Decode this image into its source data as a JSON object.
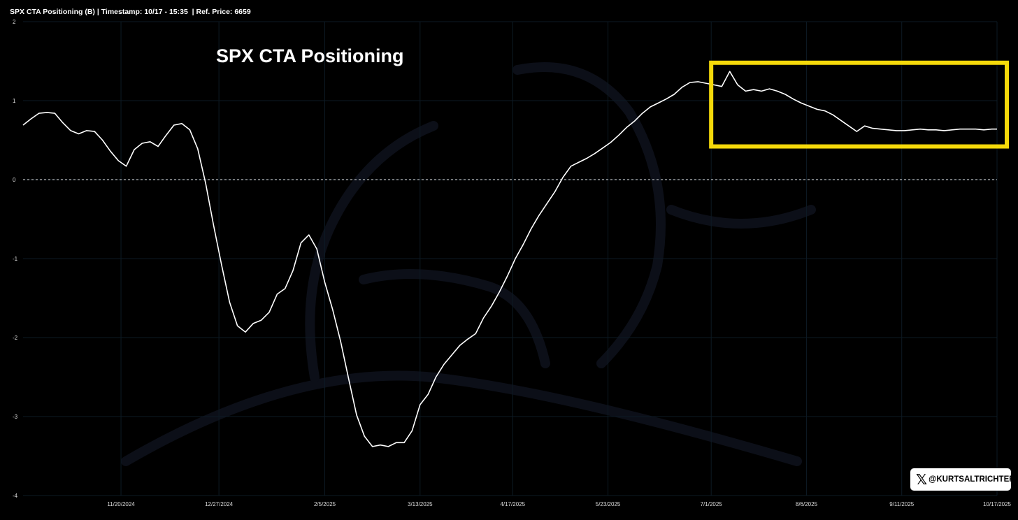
{
  "header": {
    "text": "SPX CTA Positioning (B) | Timestamp: 10/17 - 15:35  | Ref. Price: 6659"
  },
  "badge": {
    "x_glyph": "𝕏",
    "handle": "@KURTSALTRICHTER"
  },
  "colors": {
    "background": "#000000",
    "line": "#ffffff",
    "highlight_box": "#f5d90a",
    "zero_line": "#bbbbbb",
    "grid": "#0d1a24"
  },
  "chart_data": {
    "type": "line",
    "title": "SPX CTA Positioning",
    "xlabel": "",
    "ylabel": "",
    "ylim": [
      -4,
      2
    ],
    "y_ticks": [
      2,
      1,
      0,
      -1,
      -2,
      -3,
      -4
    ],
    "x_tick_labels": [
      "11/20/2024",
      "12/27/2024",
      "2/5/2025",
      "3/13/2025",
      "4/17/2025",
      "5/23/2025",
      "7/1/2025",
      "8/6/2025",
      "9/11/2025",
      "10/17/2025"
    ],
    "x_range": [
      "2024-10-14",
      "2025-10-17"
    ],
    "zero_line": {
      "value": 0,
      "style": "dotted"
    },
    "grid": true,
    "highlight": {
      "x_range": [
        "2025-07-01",
        "2025-10-17"
      ],
      "y_range": [
        0.42,
        1.48
      ],
      "color": "#f5d90a"
    },
    "series": [
      {
        "x": [
          "2024-10-14",
          "2024-10-17",
          "2024-10-20",
          "2024-10-23",
          "2024-10-26",
          "2024-10-29",
          "2024-11-01",
          "2024-11-04",
          "2024-11-07",
          "2024-11-10",
          "2024-11-13",
          "2024-11-16",
          "2024-11-19",
          "2024-11-22",
          "2024-11-25",
          "2024-11-28",
          "2024-12-01",
          "2024-12-04",
          "2024-12-07",
          "2024-12-10",
          "2024-12-13",
          "2024-12-16",
          "2024-12-19",
          "2024-12-22",
          "2024-12-25",
          "2024-12-28",
          "2024-12-31",
          "2025-01-03",
          "2025-01-06",
          "2025-01-09",
          "2025-01-12",
          "2025-01-15",
          "2025-01-18",
          "2025-01-21",
          "2025-01-24",
          "2025-01-27",
          "2025-01-30",
          "2025-02-02",
          "2025-02-05",
          "2025-02-08",
          "2025-02-11",
          "2025-02-14",
          "2025-02-17",
          "2025-02-20",
          "2025-02-23",
          "2025-02-26",
          "2025-03-01",
          "2025-03-04",
          "2025-03-07",
          "2025-03-10",
          "2025-03-13",
          "2025-03-16",
          "2025-03-19",
          "2025-03-22",
          "2025-03-25",
          "2025-03-28",
          "2025-03-31",
          "2025-04-03",
          "2025-04-06",
          "2025-04-09",
          "2025-04-12",
          "2025-04-15",
          "2025-04-18",
          "2025-04-21",
          "2025-04-24",
          "2025-04-27",
          "2025-04-30",
          "2025-05-03",
          "2025-05-06",
          "2025-05-09",
          "2025-05-12",
          "2025-05-15",
          "2025-05-18",
          "2025-05-21",
          "2025-05-24",
          "2025-05-27",
          "2025-05-30",
          "2025-06-02",
          "2025-06-05",
          "2025-06-08",
          "2025-06-11",
          "2025-06-14",
          "2025-06-17",
          "2025-06-20",
          "2025-06-23",
          "2025-06-26",
          "2025-06-29",
          "2025-07-02",
          "2025-07-05",
          "2025-07-08",
          "2025-07-11",
          "2025-07-14",
          "2025-07-17",
          "2025-07-20",
          "2025-07-23",
          "2025-07-26",
          "2025-07-29",
          "2025-08-01",
          "2025-08-04",
          "2025-08-07",
          "2025-08-10",
          "2025-08-13",
          "2025-08-16",
          "2025-08-19",
          "2025-08-22",
          "2025-08-25",
          "2025-08-28",
          "2025-08-31",
          "2025-09-03",
          "2025-09-06",
          "2025-09-09",
          "2025-09-12",
          "2025-09-15",
          "2025-09-18",
          "2025-09-21",
          "2025-09-24",
          "2025-09-27",
          "2025-09-30",
          "2025-10-03",
          "2025-10-06",
          "2025-10-09",
          "2025-10-12",
          "2025-10-15",
          "2025-10-17"
        ],
        "values": [
          0.69,
          0.77,
          0.84,
          0.85,
          0.84,
          0.72,
          0.62,
          0.58,
          0.62,
          0.61,
          0.5,
          0.36,
          0.24,
          0.17,
          0.38,
          0.46,
          0.48,
          0.42,
          0.56,
          0.69,
          0.71,
          0.63,
          0.39,
          -0.05,
          -0.58,
          -1.08,
          -1.55,
          -1.85,
          -1.93,
          -1.82,
          -1.78,
          -1.68,
          -1.45,
          -1.38,
          -1.15,
          -0.8,
          -0.7,
          -0.88,
          -1.3,
          -1.65,
          -2.05,
          -2.52,
          -2.98,
          -3.25,
          -3.38,
          -3.36,
          -3.38,
          -3.33,
          -3.33,
          -3.18,
          -2.85,
          -2.72,
          -2.5,
          -2.34,
          -2.22,
          -2.1,
          -2.02,
          -1.95,
          -1.75,
          -1.6,
          -1.42,
          -1.22,
          -1.0,
          -0.82,
          -0.62,
          -0.45,
          -0.3,
          -0.15,
          0.03,
          0.17,
          0.22,
          0.27,
          0.33,
          0.4,
          0.47,
          0.56,
          0.66,
          0.74,
          0.84,
          0.92,
          0.97,
          1.02,
          1.08,
          1.17,
          1.23,
          1.24,
          1.22,
          1.2,
          1.18,
          1.37,
          1.2,
          1.12,
          1.14,
          1.12,
          1.15,
          1.12,
          1.08,
          1.02,
          0.97,
          0.93,
          0.89,
          0.87,
          0.82,
          0.75,
          0.68,
          0.61,
          0.68,
          0.65,
          0.64,
          0.63,
          0.62,
          0.62,
          0.63,
          0.64,
          0.63,
          0.63,
          0.62,
          0.63,
          0.64,
          0.64,
          0.64,
          0.63,
          0.64,
          0.64
        ]
      }
    ]
  }
}
